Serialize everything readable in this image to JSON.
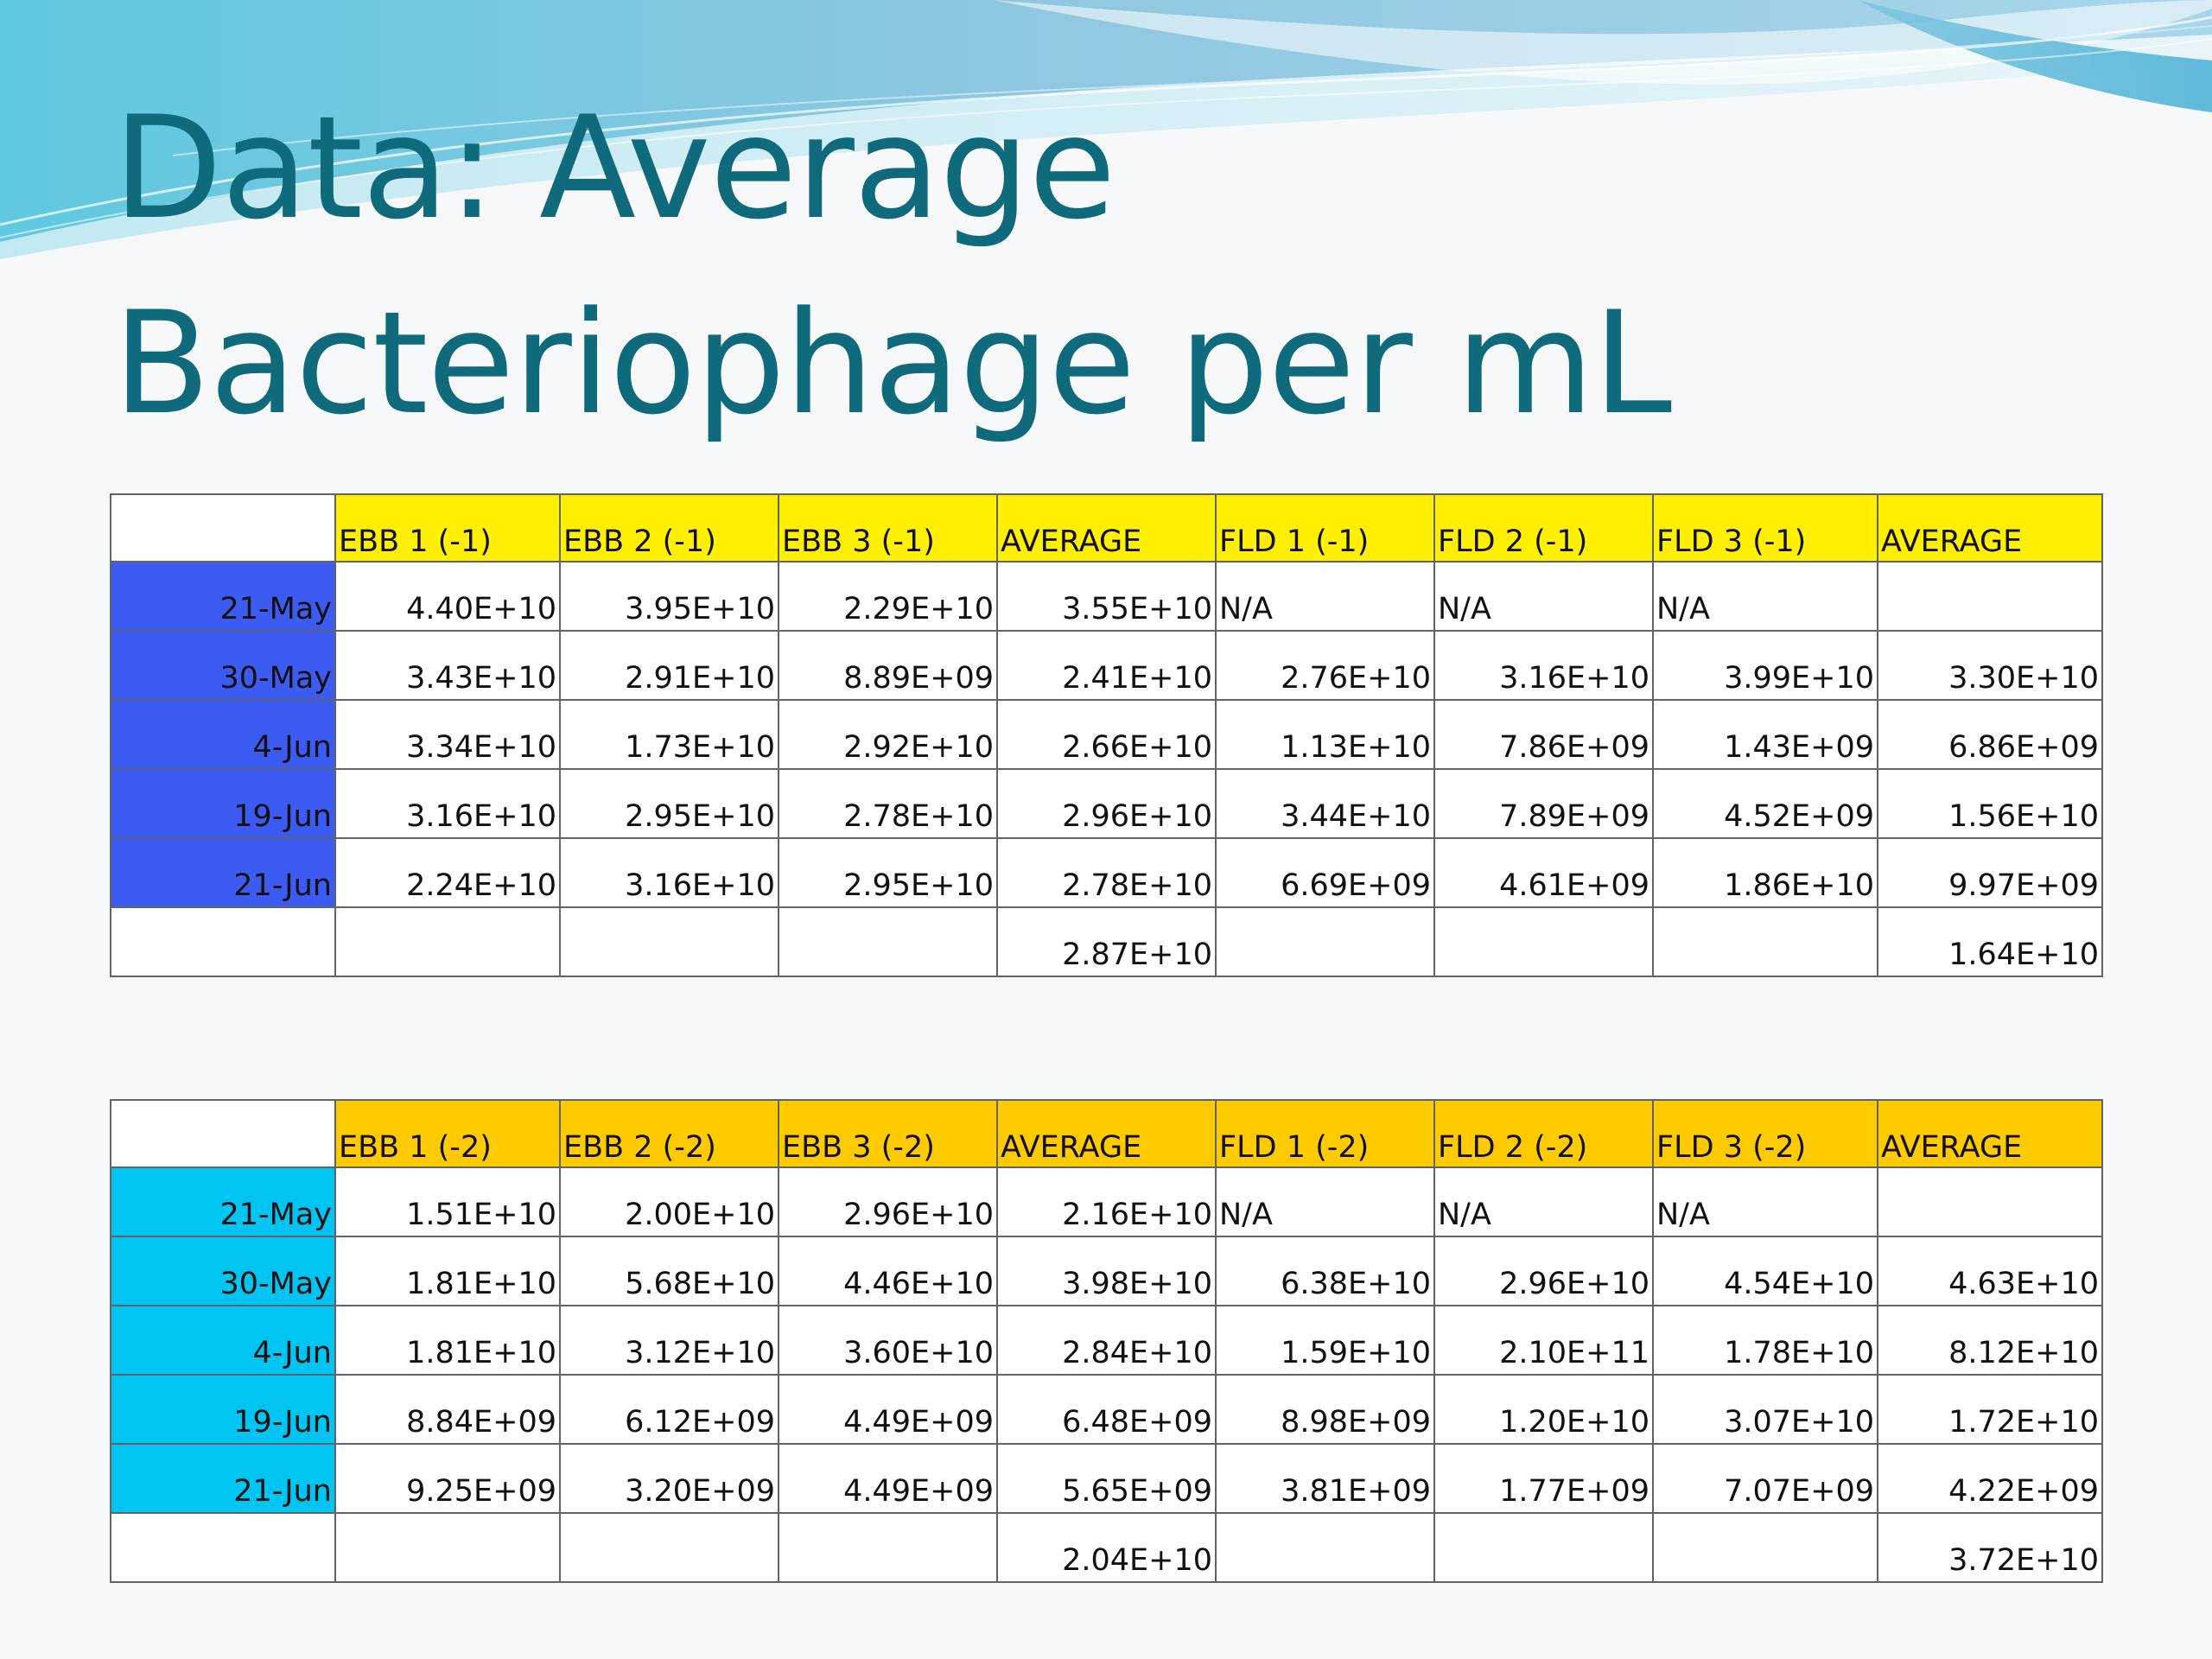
{
  "slide": {
    "title": "Data: Average Bacteriophage per mL"
  },
  "colors": {
    "title": "#0f6a7c",
    "table1_header_bg": "#ffef00",
    "table1_date_bg": "#3b5bf2",
    "table2_header_bg": "#ffcb00",
    "table2_date_bg": "#00c5f2"
  },
  "tables": [
    {
      "headers": [
        "",
        "EBB 1 (-1)",
        "EBB 2 (-1)",
        "EBB 3 (-1)",
        "AVERAGE",
        "FLD 1 (-1)",
        "FLD 2 (-1)",
        "FLD 3 (-1)",
        "AVERAGE"
      ],
      "rows": [
        [
          "21-May",
          "4.40E+10",
          "3.95E+10",
          "2.29E+10",
          "3.55E+10",
          "N/A",
          "N/A",
          "N/A",
          ""
        ],
        [
          "30-May",
          "3.43E+10",
          "2.91E+10",
          "8.89E+09",
          "2.41E+10",
          "2.76E+10",
          "3.16E+10",
          "3.99E+10",
          "3.30E+10"
        ],
        [
          "4-Jun",
          "3.34E+10",
          "1.73E+10",
          "2.92E+10",
          "2.66E+10",
          "1.13E+10",
          "7.86E+09",
          "1.43E+09",
          "6.86E+09"
        ],
        [
          "19-Jun",
          "3.16E+10",
          "2.95E+10",
          "2.78E+10",
          "2.96E+10",
          "3.44E+10",
          "7.89E+09",
          "4.52E+09",
          "1.56E+10"
        ],
        [
          "21-Jun",
          "2.24E+10",
          "3.16E+10",
          "2.95E+10",
          "2.78E+10",
          "6.69E+09",
          "4.61E+09",
          "1.86E+10",
          "9.97E+09"
        ],
        [
          "",
          "",
          "",
          "",
          "2.87E+10",
          "",
          "",
          "",
          "1.64E+10"
        ]
      ]
    },
    {
      "headers": [
        "",
        "EBB 1 (-2)",
        "EBB 2 (-2)",
        "EBB 3 (-2)",
        "AVERAGE",
        "FLD 1 (-2)",
        "FLD 2 (-2)",
        "FLD 3 (-2)",
        "AVERAGE"
      ],
      "rows": [
        [
          "21-May",
          "1.51E+10",
          "2.00E+10",
          "2.96E+10",
          "2.16E+10",
          "N/A",
          "N/A",
          "N/A",
          ""
        ],
        [
          "30-May",
          "1.81E+10",
          "5.68E+10",
          "4.46E+10",
          "3.98E+10",
          "6.38E+10",
          "2.96E+10",
          "4.54E+10",
          "4.63E+10"
        ],
        [
          "4-Jun",
          "1.81E+10",
          "3.12E+10",
          "3.60E+10",
          "2.84E+10",
          "1.59E+10",
          "2.10E+11",
          "1.78E+10",
          "8.12E+10"
        ],
        [
          "19-Jun",
          "8.84E+09",
          "6.12E+09",
          "4.49E+09",
          "6.48E+09",
          "8.98E+09",
          "1.20E+10",
          "3.07E+10",
          "1.72E+10"
        ],
        [
          "21-Jun",
          "9.25E+09",
          "3.20E+09",
          "4.49E+09",
          "5.65E+09",
          "3.81E+09",
          "1.77E+09",
          "7.07E+09",
          "4.22E+09"
        ],
        [
          "",
          "",
          "",
          "",
          "2.04E+10",
          "",
          "",
          "",
          "3.72E+10"
        ]
      ]
    }
  ]
}
